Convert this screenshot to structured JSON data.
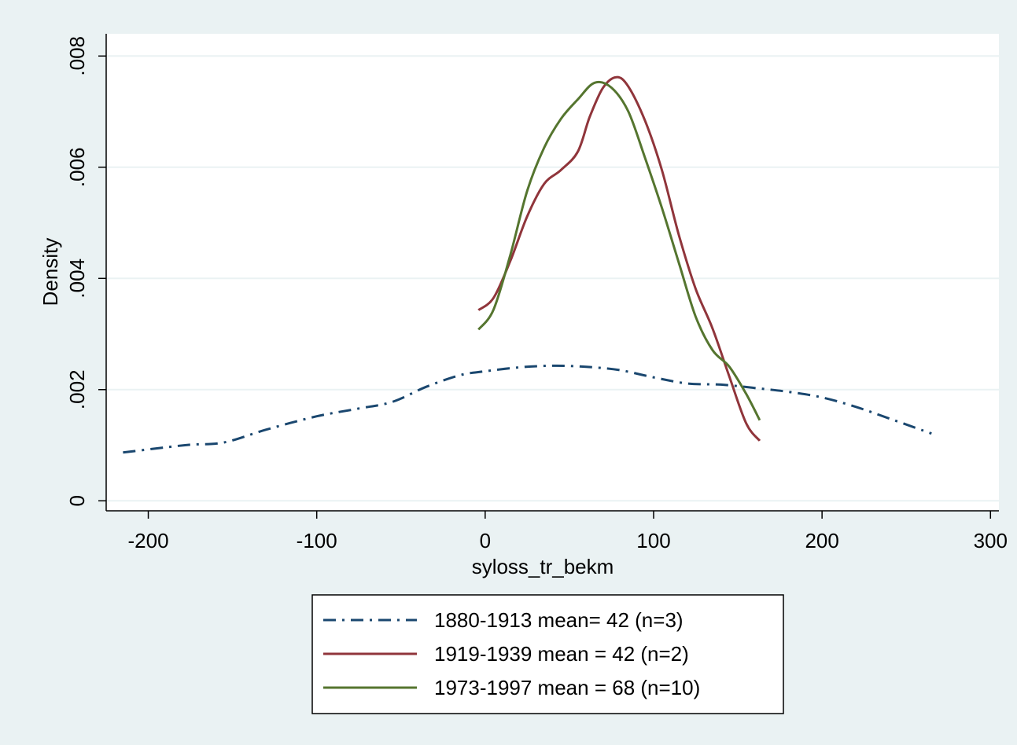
{
  "chart_data": {
    "type": "line",
    "xlabel": "syloss_tr_bekm",
    "ylabel": "Density",
    "xlim": [
      -225,
      305
    ],
    "ylim": [
      -0.00018,
      0.0084
    ],
    "x_ticks": [
      -200,
      -100,
      0,
      100,
      200,
      300
    ],
    "x_tick_labels": [
      "-200",
      "-100",
      "0",
      "100",
      "200",
      "300"
    ],
    "y_ticks": [
      0,
      0.002,
      0.004,
      0.006,
      0.008
    ],
    "y_tick_labels": [
      "0",
      ".002",
      ".004",
      ".006",
      ".008"
    ],
    "grid": "horizontal",
    "legend_position": "bottom",
    "colors": {
      "background": "#eaf2f3",
      "plot_background": "#ffffff",
      "grid": "#eaf2f3"
    },
    "series": [
      {
        "name": "1880-1913 mean= 42 (n=3)",
        "color": "#1a476f",
        "style": "dash-dot",
        "x": [
          -215,
          -190,
          -175,
          -155,
          -130,
          -100,
          -75,
          -55,
          -35,
          -15,
          0,
          20,
          40,
          60,
          80,
          100,
          120,
          140,
          160,
          180,
          200,
          220,
          240,
          265
        ],
        "y": [
          0.00087,
          0.00096,
          0.00101,
          0.00105,
          0.00128,
          0.00152,
          0.00166,
          0.00178,
          0.00205,
          0.00226,
          0.00233,
          0.0024,
          0.00243,
          0.00241,
          0.00235,
          0.00222,
          0.00211,
          0.00209,
          0.00203,
          0.00196,
          0.00186,
          0.00169,
          0.00148,
          0.00121
        ]
      },
      {
        "name": "1919-1939 mean = 42 (n=2)",
        "color": "#90353b",
        "style": "solid",
        "x": [
          -4,
          5,
          15,
          25,
          35,
          45,
          55,
          62,
          70,
          78,
          85,
          95,
          105,
          115,
          125,
          135,
          145,
          155,
          163
        ],
        "y": [
          0.00343,
          0.00365,
          0.00432,
          0.00512,
          0.0057,
          0.00595,
          0.00628,
          0.0069,
          0.00743,
          0.00762,
          0.00745,
          0.00683,
          0.00594,
          0.00478,
          0.00381,
          0.0031,
          0.00223,
          0.00139,
          0.00108
        ]
      },
      {
        "name": "1973-1997 mean = 68 (n=10)",
        "color": "#55752f",
        "style": "solid",
        "x": [
          -4,
          5,
          15,
          25,
          35,
          45,
          55,
          65,
          75,
          85,
          95,
          105,
          115,
          125,
          135,
          145,
          155,
          163
        ],
        "y": [
          0.00308,
          0.00344,
          0.00443,
          0.00558,
          0.00635,
          0.00687,
          0.00722,
          0.00752,
          0.00743,
          0.007,
          0.00616,
          0.00526,
          0.00428,
          0.00331,
          0.00271,
          0.00241,
          0.00192,
          0.00145
        ]
      }
    ]
  }
}
